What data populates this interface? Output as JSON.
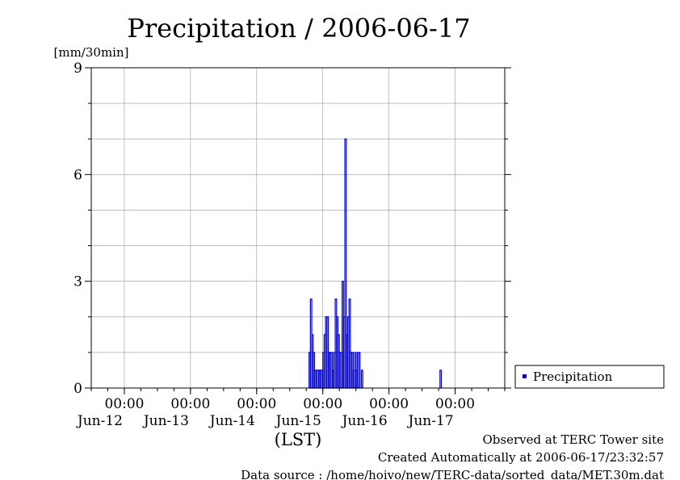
{
  "chart_data": {
    "type": "bar",
    "title": "Precipitation / 2006-06-17",
    "ylabel": "[mm/30min]",
    "xlabel": "(LST)",
    "ylim": [
      0,
      9
    ],
    "yticks": [
      "0",
      "3",
      "6",
      "9"
    ],
    "xlim": [
      "2006-06-11T12:00",
      "2006-06-17T18:00"
    ],
    "xticks": [
      {
        "time": "2006-06-12T00:00",
        "hour": "00:00",
        "date": "Jun-12"
      },
      {
        "time": "2006-06-13T00:00",
        "hour": "00:00",
        "date": "Jun-13"
      },
      {
        "time": "2006-06-14T00:00",
        "hour": "00:00",
        "date": "Jun-14"
      },
      {
        "time": "2006-06-15T00:00",
        "hour": "00:00",
        "date": "Jun-15"
      },
      {
        "time": "2006-06-16T00:00",
        "hour": "00:00",
        "date": "Jun-16"
      },
      {
        "time": "2006-06-17T00:00",
        "hour": "00:00",
        "date": "Jun-17"
      }
    ],
    "grid": true,
    "legend_position": "right",
    "series": [
      {
        "name": "Precipitation",
        "color": "#0000cc",
        "points": [
          {
            "t": "2006-06-14T19:00",
            "v": 1.0
          },
          {
            "t": "2006-06-14T19:30",
            "v": 2.5
          },
          {
            "t": "2006-06-14T20:00",
            "v": 1.5
          },
          {
            "t": "2006-06-14T20:30",
            "v": 1.0
          },
          {
            "t": "2006-06-14T21:00",
            "v": 0.5
          },
          {
            "t": "2006-06-14T21:30",
            "v": 0.5
          },
          {
            "t": "2006-06-14T22:00",
            "v": 0.5
          },
          {
            "t": "2006-06-14T22:30",
            "v": 0.5
          },
          {
            "t": "2006-06-14T23:00",
            "v": 0.5
          },
          {
            "t": "2006-06-14T23:30",
            "v": 0.5
          },
          {
            "t": "2006-06-15T00:00",
            "v": 1.0
          },
          {
            "t": "2006-06-15T00:30",
            "v": 1.5
          },
          {
            "t": "2006-06-15T01:00",
            "v": 2.0
          },
          {
            "t": "2006-06-15T01:30",
            "v": 2.0
          },
          {
            "t": "2006-06-15T02:00",
            "v": 1.0
          },
          {
            "t": "2006-06-15T02:30",
            "v": 1.0
          },
          {
            "t": "2006-06-15T03:00",
            "v": 1.0
          },
          {
            "t": "2006-06-15T03:30",
            "v": 0.5
          },
          {
            "t": "2006-06-15T04:00",
            "v": 1.0
          },
          {
            "t": "2006-06-15T04:30",
            "v": 2.5
          },
          {
            "t": "2006-06-15T05:00",
            "v": 2.0
          },
          {
            "t": "2006-06-15T05:30",
            "v": 1.5
          },
          {
            "t": "2006-06-15T06:00",
            "v": 1.0
          },
          {
            "t": "2006-06-15T06:30",
            "v": 1.0
          },
          {
            "t": "2006-06-15T07:00",
            "v": 3.0
          },
          {
            "t": "2006-06-15T07:30",
            "v": 2.0
          },
          {
            "t": "2006-06-15T08:00",
            "v": 7.0
          },
          {
            "t": "2006-06-15T08:30",
            "v": 1.5
          },
          {
            "t": "2006-06-15T09:00",
            "v": 2.0
          },
          {
            "t": "2006-06-15T09:30",
            "v": 2.5
          },
          {
            "t": "2006-06-15T10:00",
            "v": 1.0
          },
          {
            "t": "2006-06-15T10:30",
            "v": 1.0
          },
          {
            "t": "2006-06-15T11:00",
            "v": 0.5
          },
          {
            "t": "2006-06-15T11:30",
            "v": 1.0
          },
          {
            "t": "2006-06-15T12:00",
            "v": 0.5
          },
          {
            "t": "2006-06-15T12:30",
            "v": 1.0
          },
          {
            "t": "2006-06-15T13:00",
            "v": 1.0
          },
          {
            "t": "2006-06-15T14:00",
            "v": 0.5
          },
          {
            "t": "2006-06-16T18:30",
            "v": 0.5
          }
        ]
      }
    ]
  },
  "footer": {
    "site": "Observed at TERC Tower site",
    "created": "Created Automatically at 2006-06-17/23:32:57",
    "source": "Data source : /home/hoivo/new/TERC-data/sorted_data/MET.30m.dat"
  }
}
